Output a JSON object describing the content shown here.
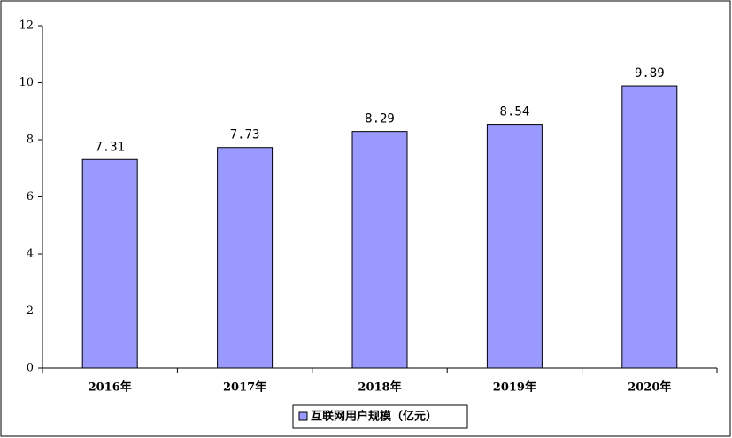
{
  "chart_data": {
    "type": "bar",
    "categories": [
      "2016年",
      "2017年",
      "2018年",
      "2019年",
      "2020年"
    ],
    "series": [
      {
        "name": "互联网用户规模（亿元）",
        "color": "#9999ff",
        "values": [
          7.31,
          7.73,
          8.29,
          8.54,
          9.89
        ]
      }
    ],
    "ylim": [
      0,
      12
    ],
    "yticks": [
      0,
      2,
      4,
      6,
      8,
      10,
      12
    ],
    "legend": "bottom"
  }
}
